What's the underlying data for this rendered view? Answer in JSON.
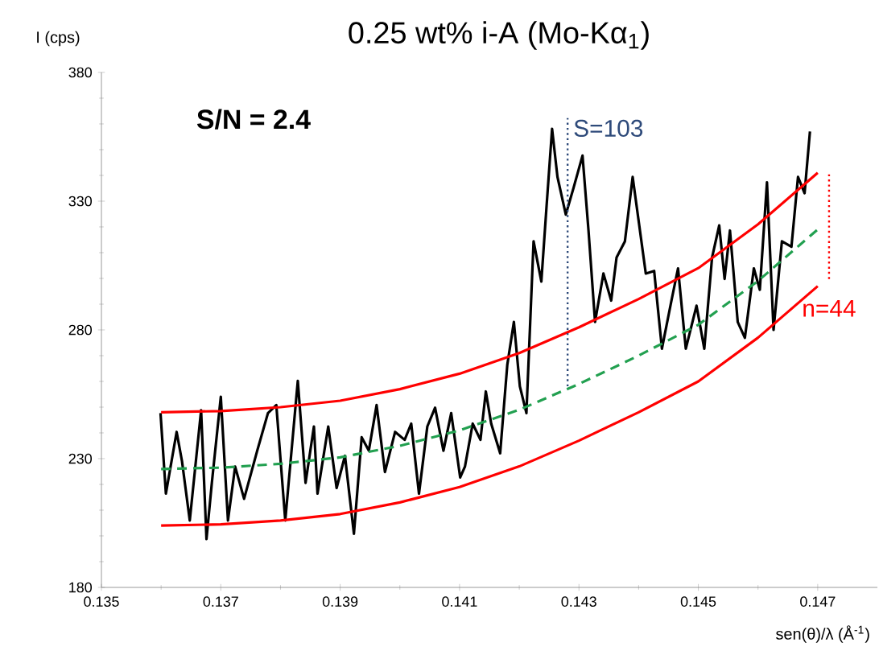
{
  "chart_data": {
    "type": "line",
    "title": "0.25 wt% i-A (Mo-Kα$_{1}$)",
    "xlabel": "sen(θ)/λ (Å$^{-1}$)",
    "ylabel": "I (cps)",
    "xlim": [
      0.135,
      0.148
    ],
    "xticks": [
      {
        "value": 0.135,
        "label": "0.135"
      },
      {
        "value": 0.137,
        "label": "0.137"
      },
      {
        "value": 0.139,
        "label": "0.139"
      },
      {
        "value": 0.141,
        "label": "0.141"
      },
      {
        "value": 0.143,
        "label": "0.143"
      },
      {
        "value": 0.145,
        "label": "0.145"
      },
      {
        "value": 0.147,
        "label": "0.147"
      }
    ],
    "ylim": [
      180,
      380
    ],
    "yticks": [
      180,
      230,
      280,
      330,
      380
    ],
    "grid": false,
    "legend": false,
    "annotations": [
      "S/N = 2.4"
    ],
    "series": [
      {
        "color": "#000000",
        "line_style": "solid",
        "x": [
          0.13599,
          0.13608,
          0.13626,
          0.13635,
          0.13648,
          0.13667,
          0.13676,
          0.13685,
          0.137,
          0.13712,
          0.13724,
          0.13739,
          0.13761,
          0.13779,
          0.13793,
          0.13808,
          0.13829,
          0.13842,
          0.13856,
          0.13862,
          0.1388,
          0.13894,
          0.13908,
          0.13923,
          0.13936,
          0.13948,
          0.13961,
          0.13975,
          0.13992,
          0.14008,
          0.14019,
          0.14032,
          0.14046,
          0.14059,
          0.14073,
          0.14086,
          0.14101,
          0.14109,
          0.14122,
          0.14135,
          0.14144,
          0.14153,
          0.14168,
          0.1418,
          0.14191,
          0.14201,
          0.14212,
          0.14224,
          0.14237,
          0.14246,
          0.14255,
          0.14264,
          0.14278,
          0.14291,
          0.14306,
          0.14316,
          0.14327,
          0.14341,
          0.14354,
          0.14363,
          0.14377,
          0.1439,
          0.14412,
          0.14426,
          0.14439,
          0.14455,
          0.14466,
          0.14479,
          0.14497,
          0.1451,
          0.14523,
          0.14535,
          0.14544,
          0.14553,
          0.14566,
          0.14578,
          0.14593,
          0.14603,
          0.14615,
          0.14626,
          0.1464,
          0.14656,
          0.14667,
          0.14678,
          0.14687
        ],
        "values": [
          247.7,
          216.4,
          240.4,
          229,
          206,
          248.8,
          198.8,
          220.6,
          254,
          206,
          226.9,
          214.4,
          233.1,
          247.7,
          250.8,
          206,
          260.2,
          220.6,
          242.5,
          216.4,
          242.5,
          218.6,
          231.1,
          200.8,
          238.3,
          233.1,
          250.8,
          224.8,
          240.4,
          237.3,
          243.6,
          216.4,
          242.5,
          249.8,
          233.1,
          247.7,
          222.7,
          226.9,
          243.6,
          237.3,
          256.1,
          243.6,
          232.1,
          266.5,
          283.1,
          258.1,
          247.7,
          314.4,
          298.8,
          328.9,
          358.1,
          339.4,
          324.8,
          335.2,
          347.7,
          318.6,
          283.1,
          301.9,
          291.4,
          308.1,
          314.4,
          339.4,
          301.9,
          302.9,
          272.7,
          291.4,
          303.9,
          272.7,
          289.4,
          272.7,
          308.1,
          320.6,
          299.8,
          318.6,
          283.1,
          276.9,
          303.9,
          295.6,
          337.3,
          280,
          314.4,
          312.3,
          339.4,
          333.1,
          357.1
        ]
      },
      {
        "color": "#ff0000",
        "line_style": "solid",
        "x": [
          0.136,
          0.137,
          0.138,
          0.139,
          0.14,
          0.141,
          0.142,
          0.143,
          0.144,
          0.145,
          0.146,
          0.147
        ],
        "values": [
          248,
          248.5,
          250,
          252.5,
          257,
          263,
          271,
          281,
          292,
          304,
          321,
          341
        ]
      },
      {
        "color": "#ff0000",
        "line_style": "solid",
        "x": [
          0.136,
          0.137,
          0.138,
          0.139,
          0.14,
          0.141,
          0.142,
          0.143,
          0.144,
          0.145,
          0.146,
          0.147
        ],
        "values": [
          204,
          204.5,
          206,
          208.5,
          213,
          219,
          227,
          237,
          248,
          260,
          277,
          297
        ]
      },
      {
        "color": "#22a050",
        "line_style": "dashed",
        "x": [
          0.136,
          0.137,
          0.138,
          0.139,
          0.14,
          0.141,
          0.142,
          0.143,
          0.144,
          0.145,
          0.146,
          0.147
        ],
        "values": [
          226,
          226.5,
          228,
          230.5,
          235,
          241,
          249,
          259,
          270,
          282,
          299,
          319
        ]
      },
      {
        "name": "S=103",
        "color": "#2e4a7a",
        "line_style": "dotted",
        "x": [
          0.14281,
          0.14281
        ],
        "values": [
          258.1,
          362.3
        ]
      },
      {
        "name": "n=44",
        "color": "#ff0000",
        "line_style": "dotted",
        "x": [
          0.14719,
          0.14719
        ],
        "values": [
          299.8,
          340.4
        ]
      }
    ]
  }
}
